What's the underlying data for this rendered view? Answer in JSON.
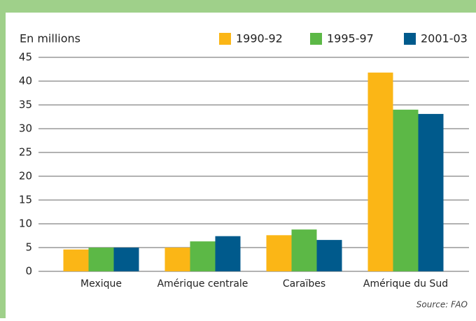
{
  "chart_data": {
    "type": "bar",
    "y_label": "En millions",
    "source": "Source: FAO",
    "categories": [
      "Mexique",
      "Amérique centrale",
      "Caraïbes",
      "Amérique du Sud"
    ],
    "series": [
      {
        "name": "1990-92",
        "color": "#fbb616",
        "values": [
          4.6,
          5.0,
          7.6,
          41.8
        ]
      },
      {
        "name": "1995-97",
        "color": "#5cb846",
        "values": [
          5.0,
          6.3,
          8.8,
          34.0
        ]
      },
      {
        "name": "2001-03",
        "color": "#005a8c",
        "values": [
          5.0,
          7.4,
          6.6,
          33.1
        ]
      }
    ],
    "ylim": [
      0,
      45
    ],
    "yticks": [
      0,
      5,
      10,
      15,
      20,
      25,
      30,
      35,
      40,
      45
    ],
    "grid": true
  }
}
